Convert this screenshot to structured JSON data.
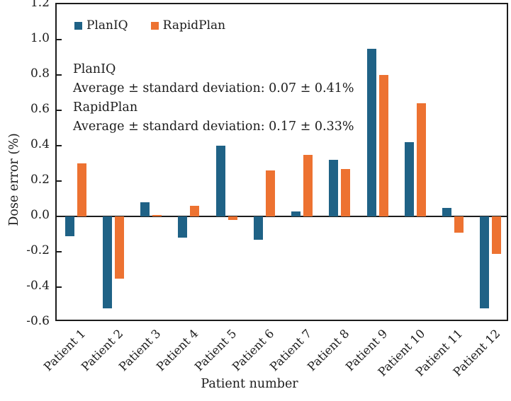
{
  "chart_data": {
    "type": "bar",
    "categories": [
      "Patient 1",
      "Patient 2",
      "Patient 3",
      "Patient 4",
      "Patient 5",
      "Patient 6",
      "Patient 7",
      "Patient 8",
      "Patient 9",
      "Patient 10",
      "Patient 11",
      "Patient 12"
    ],
    "series": [
      {
        "name": "PlanIQ",
        "color": "#1f6286",
        "values": [
          -0.11,
          -0.52,
          0.08,
          -0.12,
          0.4,
          -0.13,
          0.03,
          0.32,
          0.95,
          0.42,
          0.05,
          -0.52
        ]
      },
      {
        "name": "RapidPlan",
        "color": "#ed7231",
        "values": [
          0.3,
          -0.35,
          0.01,
          0.06,
          -0.02,
          0.26,
          0.35,
          0.27,
          0.8,
          0.64,
          -0.09,
          -0.21
        ]
      }
    ],
    "xlabel": "Patient number",
    "ylabel": "Dose error (%)",
    "ylim": [
      -0.6,
      1.2
    ],
    "ytick_labels": [
      "1.2",
      "1.0",
      "0.8",
      "0.6",
      "0.4",
      "0.2",
      "0.0",
      "-0.2",
      "-0.4",
      "-0.6"
    ],
    "grid": false,
    "legend_position": "inside-top-left"
  },
  "legend": {
    "items": [
      {
        "label": "PlanIQ",
        "color": "#1f6286"
      },
      {
        "label": "RapidPlan",
        "color": "#ed7231"
      }
    ]
  },
  "annotation": {
    "lines": [
      "PlanIQ",
      "Average ± standard deviation: 0.07 ± 0.41%",
      "RapidPlan",
      "Average ± standard deviation: 0.17 ± 0.33%"
    ]
  }
}
